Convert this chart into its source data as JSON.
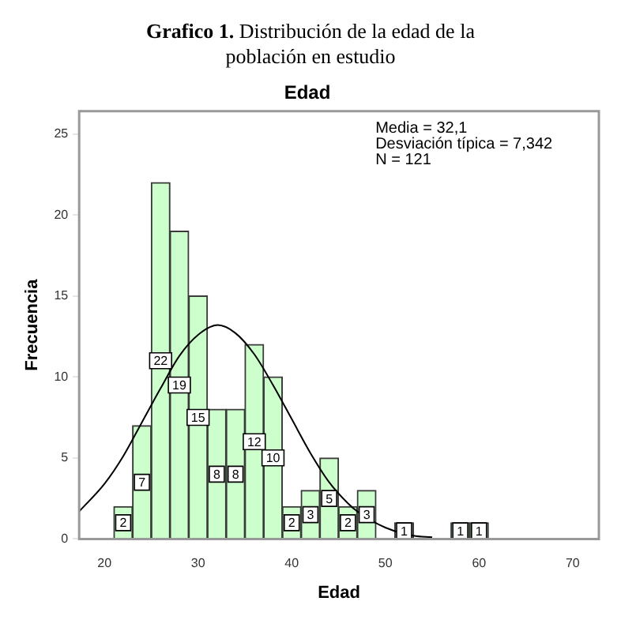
{
  "chart_data": {
    "type": "histogram",
    "title": "Grafico 1. Distribución de la edad de la población en estudio",
    "subtitle": "Edad",
    "xlabel": "Edad",
    "ylabel": "Frecuencia",
    "annotations": [
      "Media = 32,1",
      "Desviación típica = 7,342",
      "N = 121"
    ],
    "bins": [
      21,
      23,
      25,
      27,
      29,
      31,
      33,
      35,
      37,
      39,
      41,
      43,
      45,
      47,
      49,
      51,
      53,
      55,
      57,
      59,
      61
    ],
    "series": [
      {
        "color": "#ccffcc",
        "values": [
          2,
          7,
          22,
          19,
          15,
          8,
          8,
          12,
          10,
          2,
          3,
          5,
          2,
          3,
          0,
          1,
          0,
          0,
          1,
          1
        ],
        "value_labels": [
          "2",
          "7",
          "22",
          "19",
          "15",
          "8",
          "8",
          "12",
          "10",
          "2",
          "3",
          "5",
          "2",
          "3",
          null,
          "1",
          null,
          null,
          "1",
          "1"
        ]
      },
      {
        "type": "line",
        "color": "#000000",
        "x": [
          17.3,
          20,
          22,
          24,
          26,
          28,
          30,
          32.1,
          34,
          36,
          38,
          40,
          42,
          44,
          46,
          47,
          50,
          53,
          55
        ],
        "values": [
          1.7,
          3.4,
          5.1,
          7.2,
          9.3,
          11.3,
          12.6,
          13.2,
          12.7,
          11.4,
          9.5,
          7.4,
          5.3,
          3.5,
          2.2,
          1.7,
          0.7,
          0.2,
          0.1
        ]
      }
    ],
    "xlim": [
      17.3,
      72.8
    ],
    "xticks": [
      20,
      30,
      40,
      50,
      60,
      70
    ],
    "ylim": [
      0,
      26.4
    ],
    "yticks": [
      0,
      5,
      10,
      15,
      20,
      25
    ],
    "grid": false,
    "legend": false,
    "marker": "none"
  }
}
